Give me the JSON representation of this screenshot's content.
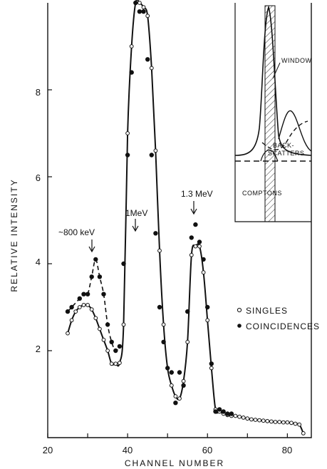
{
  "chart_data": {
    "type": "scatter",
    "xlabel": "CHANNEL NUMBER",
    "ylabel": "RELATIVE INTENSITY",
    "xlim": [
      20,
      86
    ],
    "ylim": [
      0,
      10
    ],
    "xticks": [
      "20",
      "40",
      "60",
      "80"
    ],
    "yticks": [
      "2",
      "4",
      "6",
      "8"
    ],
    "legend_position": "center-right",
    "series": [
      {
        "name": "SINGLES",
        "marker": "open-circle",
        "x": [
          25,
          26,
          27,
          28,
          29,
          30,
          31,
          32,
          33,
          34,
          35,
          36,
          37,
          38,
          39,
          40,
          41,
          42,
          43,
          44,
          45,
          46,
          47,
          48,
          49,
          50,
          51,
          52,
          53,
          54,
          55,
          56,
          57,
          58,
          59,
          60,
          61,
          62,
          63,
          64,
          65,
          66,
          67,
          68,
          69,
          70,
          71,
          72,
          73,
          74,
          75,
          76,
          77,
          78,
          79,
          80,
          81,
          82,
          83,
          84
        ],
        "y": [
          2.4,
          2.7,
          2.9,
          3.0,
          3.05,
          3.05,
          2.95,
          2.75,
          2.5,
          2.25,
          2.0,
          1.7,
          1.7,
          1.72,
          2.6,
          7.0,
          9.0,
          10.0,
          10.0,
          9.9,
          9.7,
          8.5,
          6.6,
          4.3,
          2.6,
          1.6,
          1.2,
          0.95,
          0.9,
          1.3,
          2.2,
          4.2,
          4.4,
          4.4,
          3.8,
          2.7,
          1.6,
          0.65,
          0.6,
          0.55,
          0.52,
          0.5,
          0.5,
          0.48,
          0.46,
          0.44,
          0.42,
          0.41,
          0.4,
          0.39,
          0.38,
          0.37,
          0.36,
          0.36,
          0.35,
          0.35,
          0.34,
          0.32,
          0.3,
          0.1
        ]
      },
      {
        "name": "COINCIDENCES",
        "marker": "filled-circle",
        "x": [
          25,
          26,
          28,
          29,
          30,
          31,
          32,
          33,
          34,
          35,
          36,
          37,
          38,
          39,
          40,
          41,
          42,
          43,
          44,
          45,
          46,
          47,
          48,
          49,
          50,
          51,
          52,
          53,
          54,
          55,
          56,
          57,
          58,
          59,
          60,
          61,
          62,
          63,
          64,
          65,
          66
        ],
        "y": [
          2.9,
          3.0,
          3.2,
          3.3,
          3.3,
          3.7,
          4.1,
          3.7,
          3.3,
          2.6,
          2.2,
          2.0,
          2.1,
          4.0,
          6.5,
          8.4,
          10.0,
          9.8,
          9.8,
          8.7,
          6.5,
          4.7,
          3.0,
          2.2,
          1.6,
          1.5,
          0.8,
          1.5,
          1.2,
          2.9,
          4.6,
          4.9,
          4.5,
          4.1,
          3.0,
          1.7,
          0.6,
          0.65,
          0.6,
          0.55,
          0.55
        ]
      }
    ],
    "annotations": [
      {
        "text": "~800 keV",
        "x": 32,
        "y": 4.1
      },
      {
        "text": "1MeV",
        "x": 43,
        "y": 5.4
      },
      {
        "text": "1.3 MeV",
        "x": 57,
        "y": 5.4
      }
    ],
    "inset": {
      "labels": [
        "WINDOW",
        "BACK-",
        "SCATTERS",
        "COMPTONS"
      ]
    }
  },
  "colors": {
    "ink": "#111111",
    "background": "#ffffff"
  }
}
